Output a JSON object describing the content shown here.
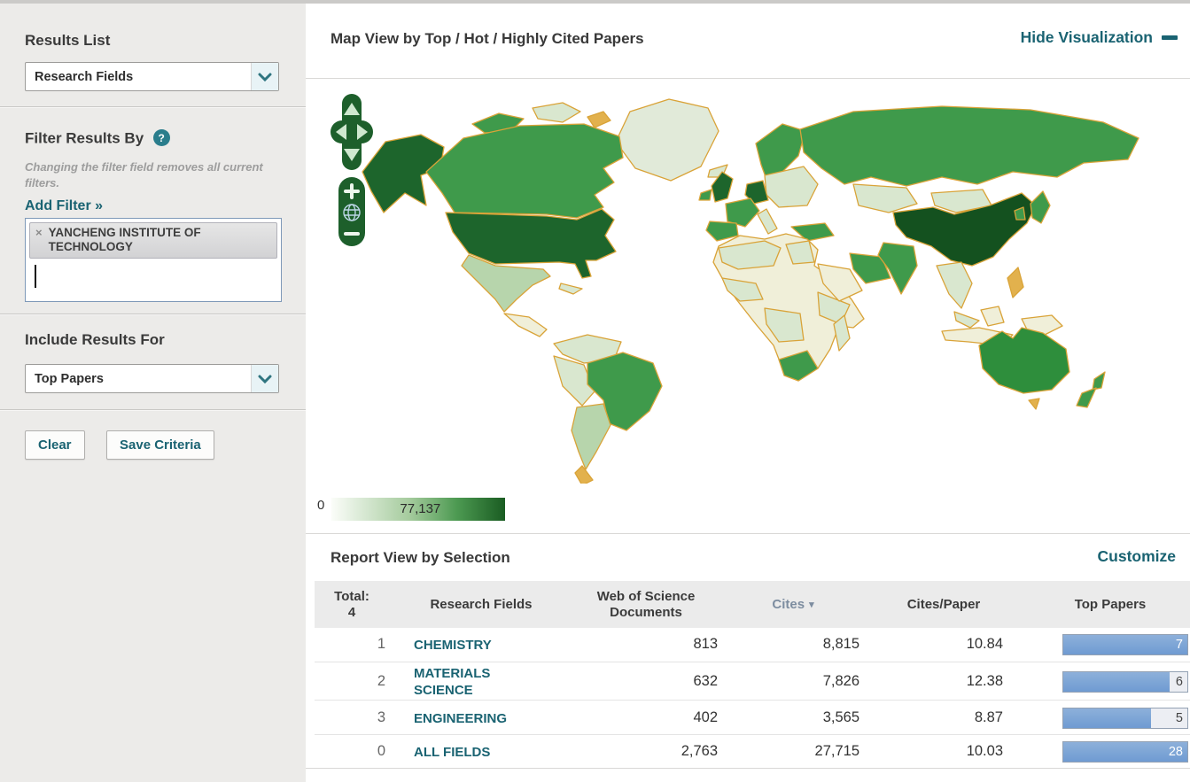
{
  "colors": {
    "accent": "#1a6372",
    "bar_blue": "#6f9bd2",
    "border_orange": "#d9a338",
    "map_darkest": "#14511f",
    "map_dark": "#1d652c",
    "map_mid": "#3f9a4b",
    "map_light": "#b7d5ac",
    "map_pale": "#d9e7cf",
    "map_cream": "#f0efd9",
    "legend_max_color": "#1a5c22"
  },
  "sidebar": {
    "results_list": {
      "title": "Results List",
      "dropdown_value": "Research Fields"
    },
    "filter": {
      "title": "Filter Results By",
      "help_icon": "?",
      "note": "Changing the filter field removes all current filters.",
      "add_filter_label": "Add Filter »",
      "tag": {
        "close_icon": "×",
        "label": "YANCHENG INSTITUTE OF TECHNOLOGY"
      }
    },
    "include_results": {
      "title": "Include Results For",
      "dropdown_value": "Top Papers"
    },
    "actions": {
      "clear_label": "Clear",
      "save_label": "Save Criteria"
    }
  },
  "map_section": {
    "title": "Map View by Top / Hot / Highly Cited Papers",
    "hide_link": "Hide Visualization",
    "legend": {
      "min": "0",
      "max_label": "77,137"
    },
    "controls": {
      "zoom_in": "+",
      "zoom_out": "−"
    }
  },
  "report": {
    "title": "Report View by Selection",
    "customize_link": "Customize",
    "table": {
      "total_label": "Total:",
      "total_value": "4",
      "col_field": "Research Fields",
      "col_docs": "Web of Science Documents",
      "col_cites": "Cites",
      "sort_icon": "▾",
      "col_cpp": "Cites/Paper",
      "col_top": "Top Papers",
      "rows": [
        {
          "rank": "1",
          "field": "CHEMISTRY",
          "documents": "813",
          "cites": "8,815",
          "cites_per_paper": "10.84",
          "top_papers": "7",
          "bar_pct": 100
        },
        {
          "rank": "2",
          "field": "MATERIALS SCIENCE",
          "documents": "632",
          "cites": "7,826",
          "cites_per_paper": "12.38",
          "top_papers": "6",
          "bar_pct": 86
        },
        {
          "rank": "3",
          "field": "ENGINEERING",
          "documents": "402",
          "cites": "3,565",
          "cites_per_paper": "8.87",
          "top_papers": "5",
          "bar_pct": 71
        },
        {
          "rank": "0",
          "field": "ALL FIELDS",
          "documents": "2,763",
          "cites": "27,715",
          "cites_per_paper": "10.03",
          "top_papers": "28",
          "bar_pct": 100
        }
      ]
    }
  }
}
